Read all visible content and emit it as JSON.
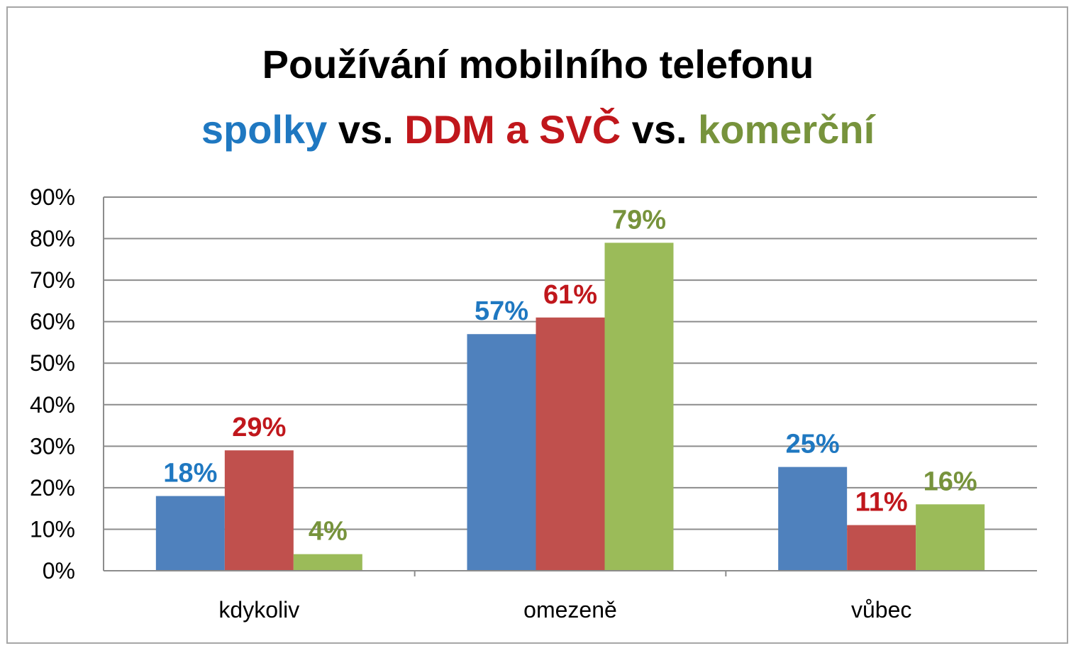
{
  "chart_data": {
    "type": "bar",
    "title": "Používání mobilního telefonu",
    "subtitle_parts": [
      {
        "text": "spolky",
        "color": "#1f78c1"
      },
      {
        "text": " vs. ",
        "color": "#000000"
      },
      {
        "text": "DDM a SVČ",
        "color": "#c0171c"
      },
      {
        "text": " vs. ",
        "color": "#000000"
      },
      {
        "text": "komerční",
        "color": "#77933c"
      }
    ],
    "categories": [
      "kdykoliv",
      "omezeně",
      "vůbec"
    ],
    "series": [
      {
        "values": [
          18,
          57,
          25
        ],
        "labels": [
          "18%",
          "57%",
          "25%"
        ],
        "color": "#4f81bd",
        "label_color": "#1f78c1"
      },
      {
        "values": [
          29,
          61,
          11
        ],
        "labels": [
          "29%",
          "61%",
          "11%"
        ],
        "color": "#c0504d",
        "label_color": "#c0171c"
      },
      {
        "values": [
          4,
          79,
          16
        ],
        "labels": [
          "4%",
          "79%",
          "16%"
        ],
        "color": "#9bbb59",
        "label_color": "#77933c"
      }
    ],
    "ylim": [
      0,
      90
    ],
    "yticks": [
      "0%",
      "10%",
      "20%",
      "30%",
      "40%",
      "50%",
      "60%",
      "70%",
      "80%",
      "90%"
    ],
    "grid": true,
    "legend": "none"
  }
}
